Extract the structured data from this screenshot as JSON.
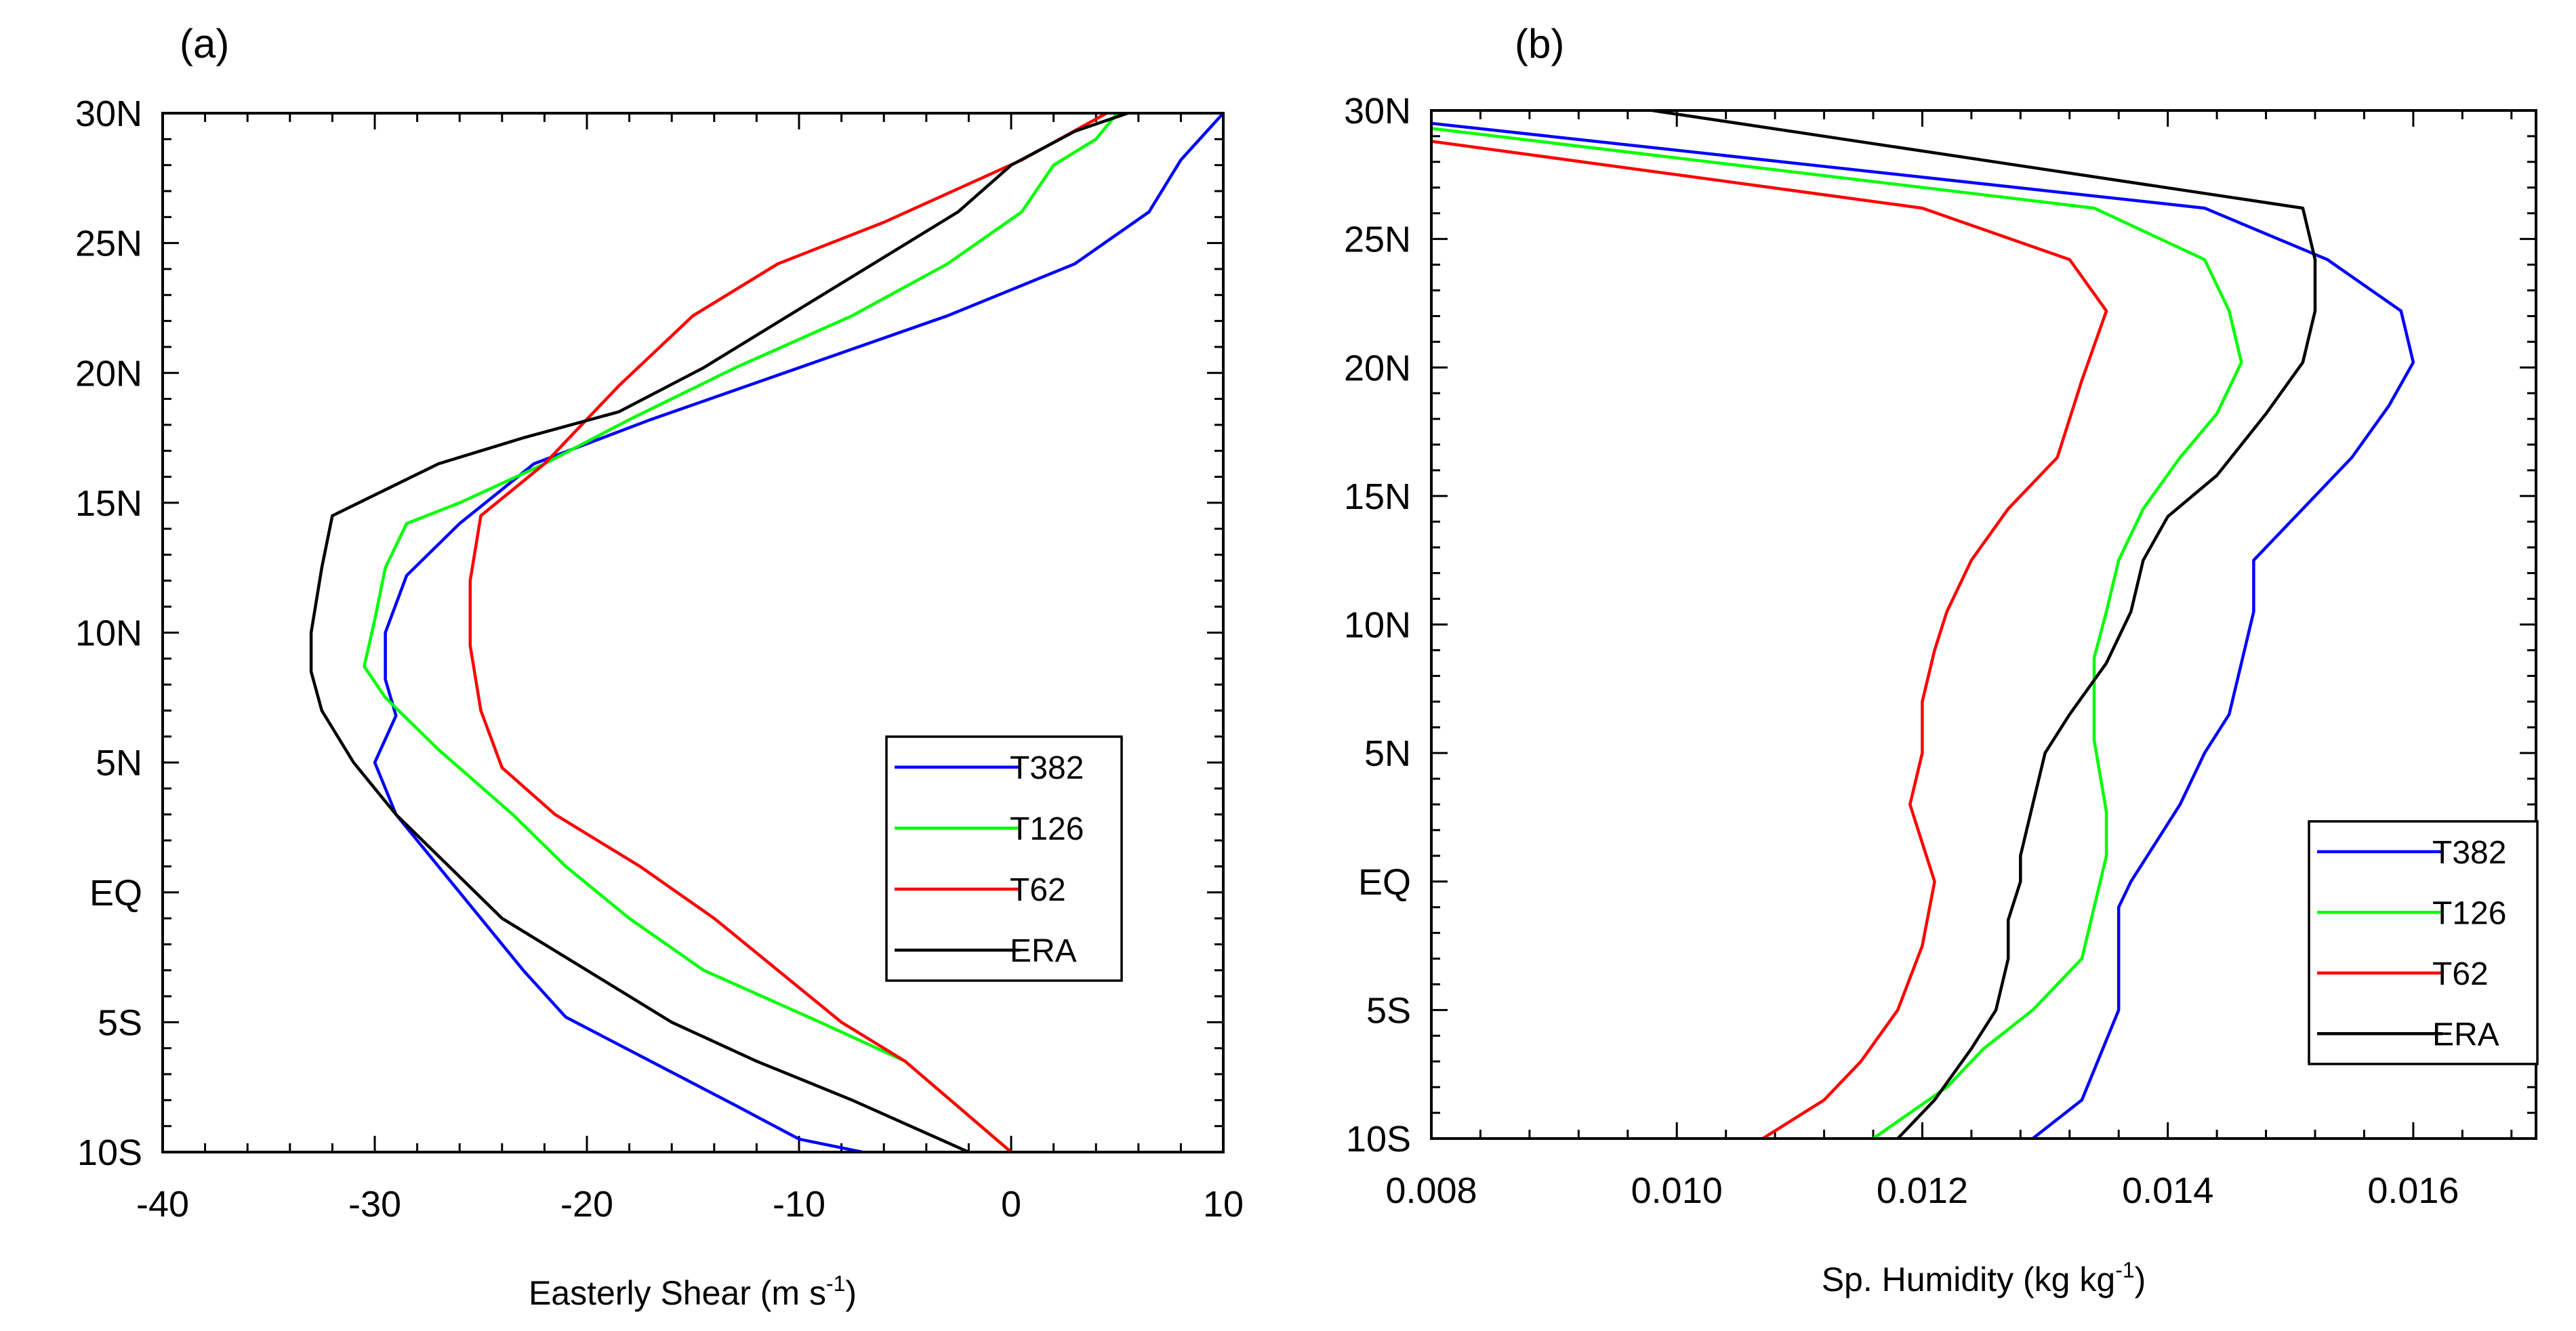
{
  "chart_data": [
    {
      "type": "line",
      "panel_label": "(a)",
      "xlabel": "Easterly Shear (m s",
      "xlabel_sup": "-1",
      "xlabel_end": ")",
      "ylabel": "",
      "xlim": [
        -40,
        10
      ],
      "ylim": [
        -10,
        30
      ],
      "xticks": [
        {
          "value": -40,
          "label": "-40"
        },
        {
          "value": -30,
          "label": "-30"
        },
        {
          "value": -20,
          "label": "-20"
        },
        {
          "value": -10,
          "label": "-10"
        },
        {
          "value": 0,
          "label": "0"
        },
        {
          "value": 10,
          "label": "10"
        }
      ],
      "yticks": [
        {
          "value": 30,
          "label": "30N"
        },
        {
          "value": 25,
          "label": "25N"
        },
        {
          "value": 20,
          "label": "20N"
        },
        {
          "value": 15,
          "label": "15N"
        },
        {
          "value": 10,
          "label": "10N"
        },
        {
          "value": 5,
          "label": "5N"
        },
        {
          "value": 0,
          "label": "EQ"
        },
        {
          "value": -5,
          "label": "5S"
        },
        {
          "value": -10,
          "label": "10S"
        }
      ],
      "legend_position": "lower-right",
      "series": [
        {
          "name": "T382",
          "color": "#0000ff",
          "points": [
            [
              10,
              30
            ],
            [
              8,
              28.2
            ],
            [
              6.5,
              26.2
            ],
            [
              3,
              24.2
            ],
            [
              -3,
              22.2
            ],
            [
              -10,
              20.2
            ],
            [
              -17,
              18.2
            ],
            [
              -22.5,
              16.5
            ],
            [
              -26,
              14.2
            ],
            [
              -28.5,
              12.2
            ],
            [
              -29.5,
              10
            ],
            [
              -29.5,
              8.2
            ],
            [
              -29,
              6.8
            ],
            [
              -30,
              5
            ],
            [
              -29,
              3
            ],
            [
              -27,
              1
            ],
            [
              -25,
              -1
            ],
            [
              -23,
              -3
            ],
            [
              -21,
              -4.8
            ],
            [
              -17,
              -6.5
            ],
            [
              -13,
              -8.2
            ],
            [
              -10,
              -9.5
            ],
            [
              -7,
              -10
            ]
          ]
        },
        {
          "name": "T126",
          "color": "#00ff00",
          "points": [
            [
              5,
              30
            ],
            [
              4,
              29
            ],
            [
              2,
              28
            ],
            [
              0.5,
              26.2
            ],
            [
              -3,
              24.2
            ],
            [
              -7.5,
              22.2
            ],
            [
              -13,
              20.2
            ],
            [
              -18,
              18.2
            ],
            [
              -22,
              16.5
            ],
            [
              -26,
              15
            ],
            [
              -28.5,
              14.2
            ],
            [
              -29.5,
              12.5
            ],
            [
              -30,
              10.5
            ],
            [
              -30.5,
              8.7
            ],
            [
              -29.5,
              7.5
            ],
            [
              -27,
              5.5
            ],
            [
              -23.5,
              3
            ],
            [
              -21,
              1
            ],
            [
              -18,
              -1
            ],
            [
              -14.5,
              -3
            ],
            [
              -9,
              -5
            ],
            [
              -5,
              -6.5
            ],
            [
              0,
              -10
            ]
          ]
        },
        {
          "name": "T62",
          "color": "#ff0000",
          "points": [
            [
              4.5,
              30
            ],
            [
              0.5,
              28.2
            ],
            [
              -6,
              25.8
            ],
            [
              -11,
              24.2
            ],
            [
              -15,
              22.2
            ],
            [
              -18.5,
              19.5
            ],
            [
              -22,
              16.5
            ],
            [
              -25,
              14.5
            ],
            [
              -25.5,
              12
            ],
            [
              -25.5,
              9.5
            ],
            [
              -25,
              7
            ],
            [
              -24,
              4.8
            ],
            [
              -21.5,
              3
            ],
            [
              -17.5,
              1
            ],
            [
              -14,
              -1
            ],
            [
              -11,
              -3
            ],
            [
              -8,
              -5
            ],
            [
              -5,
              -6.5
            ],
            [
              0,
              -10
            ]
          ]
        },
        {
          "name": "ERA",
          "color": "#000000",
          "points": [
            [
              5.5,
              30
            ],
            [
              3,
              29.3
            ],
            [
              0,
              28
            ],
            [
              -2.5,
              26.2
            ],
            [
              -6.5,
              24.2
            ],
            [
              -10.5,
              22.2
            ],
            [
              -14.5,
              20.2
            ],
            [
              -18.5,
              18.5
            ],
            [
              -23,
              17.5
            ],
            [
              -27,
              16.5
            ],
            [
              -29.5,
              15.5
            ],
            [
              -32,
              14.5
            ],
            [
              -32.5,
              12.5
            ],
            [
              -33,
              10
            ],
            [
              -33,
              8.5
            ],
            [
              -32.5,
              7
            ],
            [
              -31,
              5
            ],
            [
              -29,
              3
            ],
            [
              -26.5,
              1
            ],
            [
              -24,
              -1
            ],
            [
              -20,
              -3
            ],
            [
              -16,
              -5
            ],
            [
              -12,
              -6.5
            ],
            [
              -7.5,
              -8
            ],
            [
              -2,
              -10
            ]
          ]
        }
      ]
    },
    {
      "type": "line",
      "panel_label": "(b)",
      "xlabel": "Sp. Humidity (kg kg",
      "xlabel_sup": "-1",
      "xlabel_end": ")",
      "ylabel": "",
      "xlim": [
        0.008,
        0.017
      ],
      "ylim": [
        -10,
        30
      ],
      "xticks": [
        {
          "value": 0.008,
          "label": "0.008"
        },
        {
          "value": 0.01,
          "label": "0.010"
        },
        {
          "value": 0.012,
          "label": "0.012"
        },
        {
          "value": 0.014,
          "label": "0.014"
        },
        {
          "value": 0.016,
          "label": "0.016"
        }
      ],
      "yticks": [
        {
          "value": 30,
          "label": "30N"
        },
        {
          "value": 25,
          "label": "25N"
        },
        {
          "value": 20,
          "label": "20N"
        },
        {
          "value": 15,
          "label": "15N"
        },
        {
          "value": 10,
          "label": "10N"
        },
        {
          "value": 5,
          "label": "5N"
        },
        {
          "value": 0,
          "label": "EQ"
        },
        {
          "value": -5,
          "label": "5S"
        },
        {
          "value": -10,
          "label": "10S"
        }
      ],
      "legend_position": "lower-right",
      "series": [
        {
          "name": "T382",
          "color": "#0000ff",
          "points": [
            [
              0.008,
              29.5
            ],
            [
              0.0143,
              26.2
            ],
            [
              0.0153,
              24.2
            ],
            [
              0.0159,
              22.2
            ],
            [
              0.016,
              20.2
            ],
            [
              0.0158,
              18.5
            ],
            [
              0.0155,
              16.5
            ],
            [
              0.0152,
              15
            ],
            [
              0.0147,
              12.5
            ],
            [
              0.0147,
              10.5
            ],
            [
              0.0146,
              8.5
            ],
            [
              0.0145,
              6.5
            ],
            [
              0.0143,
              5
            ],
            [
              0.0141,
              3
            ],
            [
              0.0139,
              1.5
            ],
            [
              0.0137,
              0
            ],
            [
              0.0136,
              -1
            ],
            [
              0.0136,
              -3
            ],
            [
              0.0136,
              -5
            ],
            [
              0.0133,
              -8.5
            ],
            [
              0.0129,
              -10
            ]
          ]
        },
        {
          "name": "T126",
          "color": "#00ff00",
          "points": [
            [
              0.008,
              29.3
            ],
            [
              0.0134,
              26.2
            ],
            [
              0.0143,
              24.2
            ],
            [
              0.0145,
              22.2
            ],
            [
              0.0146,
              20.2
            ],
            [
              0.0144,
              18.2
            ],
            [
              0.0141,
              16.5
            ],
            [
              0.0138,
              14.5
            ],
            [
              0.0136,
              12.5
            ],
            [
              0.0135,
              10.5
            ],
            [
              0.0134,
              8.7
            ],
            [
              0.0134,
              7
            ],
            [
              0.0134,
              5.5
            ],
            [
              0.0135,
              2.7
            ],
            [
              0.0135,
              1
            ],
            [
              0.0133,
              -3
            ],
            [
              0.0129,
              -5
            ],
            [
              0.0125,
              -6.5
            ],
            [
              0.0122,
              -8
            ],
            [
              0.0119,
              -9
            ],
            [
              0.0116,
              -10
            ]
          ]
        },
        {
          "name": "T62",
          "color": "#ff0000",
          "points": [
            [
              0.008,
              28.8
            ],
            [
              0.012,
              26.2
            ],
            [
              0.0132,
              24.2
            ],
            [
              0.0135,
              22.2
            ],
            [
              0.0133,
              19.5
            ],
            [
              0.0131,
              16.5
            ],
            [
              0.0127,
              14.5
            ],
            [
              0.0124,
              12.5
            ],
            [
              0.0122,
              10.5
            ],
            [
              0.0121,
              9
            ],
            [
              0.012,
              7
            ],
            [
              0.012,
              5
            ],
            [
              0.0119,
              3
            ],
            [
              0.012,
              1.5
            ],
            [
              0.0121,
              0
            ],
            [
              0.012,
              -2.5
            ],
            [
              0.0118,
              -5
            ],
            [
              0.0115,
              -7
            ],
            [
              0.0112,
              -8.5
            ],
            [
              0.0107,
              -10
            ]
          ]
        },
        {
          "name": "ERA",
          "color": "#000000",
          "points": [
            [
              0.0098,
              30
            ],
            [
              0.0151,
              26.2
            ],
            [
              0.0152,
              24.2
            ],
            [
              0.0152,
              22.2
            ],
            [
              0.0151,
              20.2
            ],
            [
              0.0148,
              18.2
            ],
            [
              0.0144,
              15.8
            ],
            [
              0.014,
              14.2
            ],
            [
              0.0138,
              12.5
            ],
            [
              0.0137,
              10.5
            ],
            [
              0.0135,
              8.5
            ],
            [
              0.0132,
              6.5
            ],
            [
              0.013,
              5
            ],
            [
              0.0129,
              3
            ],
            [
              0.0128,
              1
            ],
            [
              0.0128,
              0
            ],
            [
              0.0127,
              -1.5
            ],
            [
              0.0127,
              -3
            ],
            [
              0.0126,
              -5
            ],
            [
              0.0124,
              -6.5
            ],
            [
              0.0121,
              -8.5
            ],
            [
              0.0118,
              -10
            ]
          ]
        }
      ]
    }
  ]
}
